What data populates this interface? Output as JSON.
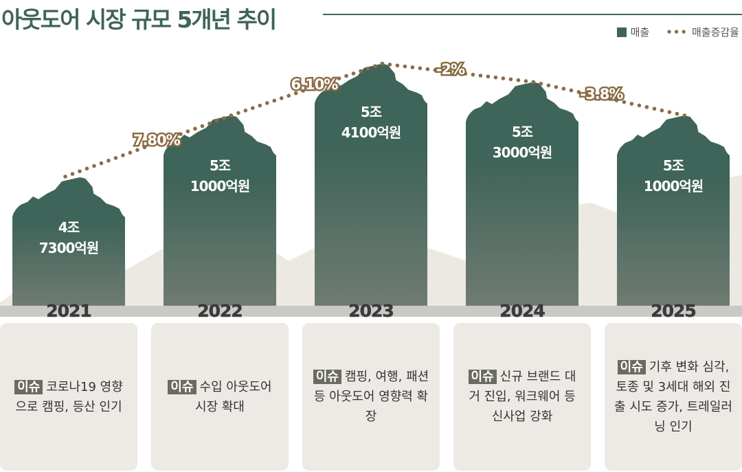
{
  "title": "아웃도어 시장 규모 5개년 추이",
  "legend": {
    "sales": "매출",
    "rate": "매출증감율"
  },
  "colors": {
    "bar": "#3f6459",
    "bar_bottom": "#6f7b72",
    "rate_line": "#8a6d45",
    "background_mountain": "#ece8e2"
  },
  "chart_data": {
    "type": "bar",
    "categories": [
      "2021",
      "2022",
      "2023",
      "2024",
      "2025"
    ],
    "series": [
      {
        "name": "매출",
        "unit": "억원",
        "values": [
          47300,
          51000,
          54100,
          53000,
          51000
        ]
      },
      {
        "name": "매출증감율",
        "type": "line",
        "style": "dotted"
      }
    ],
    "bar_labels": [
      [
        "4조",
        "7300억원"
      ],
      [
        "5조",
        "1000억원"
      ],
      [
        "5조",
        "4100억원"
      ],
      [
        "5조",
        "3000억원"
      ],
      [
        "5조",
        "1000억원"
      ]
    ],
    "rate_labels": [
      "7.80%",
      "6.10%",
      "-2%",
      "-3.8%"
    ]
  },
  "issues": [
    {
      "badge": "이슈",
      "text": "코로나19 영향으로 캠핑, 등산 인기"
    },
    {
      "badge": "이슈",
      "text": "수입 아웃도어 시장 확대"
    },
    {
      "badge": "이슈",
      "text": "캠핑, 여행, 패션 등 아웃도어 영향력 확장"
    },
    {
      "badge": "이슈",
      "text": "신규 브랜드 대거 진입, 워크웨어 등 신사업 강화"
    },
    {
      "badge": "이슈",
      "text": "기후 변화 심각, 토종 및 3세대 해외 진출 시도 증가, 트레일러닝 인기"
    }
  ]
}
